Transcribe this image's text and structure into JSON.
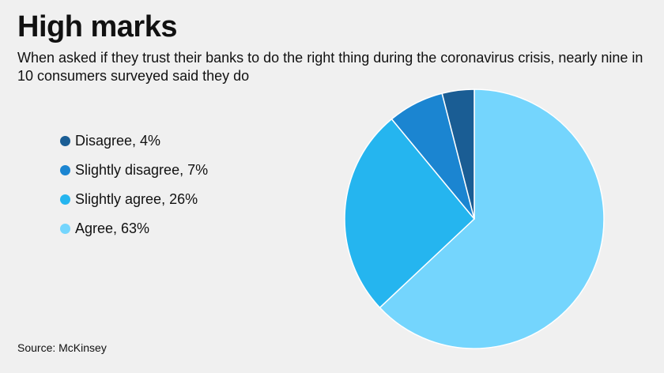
{
  "header": {
    "title": "High marks",
    "subtitle": "When asked if they trust their banks to do the right thing during the coronavirus crisis, nearly nine in 10 consumers surveyed said they do"
  },
  "footer": {
    "source": "Source: McKinsey"
  },
  "chart_data": {
    "type": "pie",
    "title": "High marks",
    "subtitle": "When asked if they trust their banks to do the right thing during the coronavirus crisis, nearly nine in 10 consumers surveyed said they do",
    "legend_position": "left",
    "start": "top, clockwise, largest slice first",
    "slices": [
      {
        "label": "Disagree",
        "value": 4,
        "legend": "Disagree, 4%",
        "color": "#1a5d94"
      },
      {
        "label": "Slightly disagree",
        "value": 7,
        "legend": "Slightly disagree, 7%",
        "color": "#1b85d1"
      },
      {
        "label": "Slightly agree",
        "value": 26,
        "legend": "Slightly agree, 26%",
        "color": "#25b5ef"
      },
      {
        "label": "Agree",
        "value": 63,
        "legend": "Agree, 63%",
        "color": "#74d5fd"
      }
    ],
    "slice_border_color": "#ffffff"
  }
}
